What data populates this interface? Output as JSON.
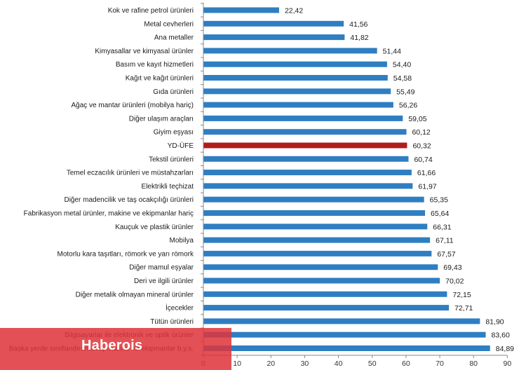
{
  "chart_data": {
    "type": "bar",
    "orientation": "horizontal",
    "categories": [
      "Kok ve rafine petrol ürünleri",
      "Metal cevherleri",
      "Ana metaller",
      "Kimyasallar ve kimyasal ürünler",
      "Basım ve kayıt hizmetleri",
      "Kağıt ve kağıt ürünleri",
      "Gıda ürünleri",
      "Ağaç ve mantar ürünleri (mobilya hariç)",
      "Diğer ulaşım araçları",
      "Giyim eşyası",
      "YD-ÜFE",
      "Tekstil ürünleri",
      "Temel eczacılık ürünleri ve müstahzarları",
      "Elektrikli teçhizat",
      "Diğer madencilik ve taş ocakçılığı ürünleri",
      "Fabrikasyon metal ürünler, makine ve ekipmanlar hariç",
      "Kauçuk ve plastik ürünler",
      "Mobilya",
      "Motorlu kara taşıtları, römork ve yarı römork",
      "Diğer mamul eşyalar",
      "Deri ve ilgili ürünler",
      "Diğer metalik olmayan mineral ürünler",
      "İçecekler",
      "Tütün ürünleri",
      "Bilgisayarlar ile elektronik ve optik ürünler",
      "Başka yerde sınıflandırılmamış makine ve ekipmanlar b.y.s."
    ],
    "values": [
      22.42,
      41.56,
      41.82,
      51.44,
      54.4,
      54.58,
      55.49,
      56.26,
      59.05,
      60.12,
      60.32,
      60.74,
      61.66,
      61.97,
      65.35,
      65.64,
      66.31,
      67.11,
      67.57,
      69.43,
      70.02,
      72.15,
      72.71,
      81.9,
      83.6,
      84.89
    ],
    "value_labels": [
      "22,42",
      "41,56",
      "41,82",
      "51,44",
      "54,40",
      "54,58",
      "55,49",
      "56,26",
      "59,05",
      "60,12",
      "60,32",
      "60,74",
      "61,66",
      "61,97",
      "65,35",
      "65,64",
      "66,31",
      "67,11",
      "67,57",
      "69,43",
      "70,02",
      "72,15",
      "72,71",
      "81,90",
      "83,60",
      "84,89"
    ],
    "highlight_category": "YD-ÜFE",
    "xlim": [
      0,
      90
    ],
    "xticks": [
      0,
      10,
      20,
      30,
      40,
      50,
      60,
      70,
      80,
      90
    ],
    "grid": false,
    "colors": {
      "bar": "#2f7ec2",
      "highlight": "#b01c1c",
      "axis": "#888888"
    }
  },
  "watermark": {
    "text": "Haberois",
    "color": "#de343a"
  }
}
